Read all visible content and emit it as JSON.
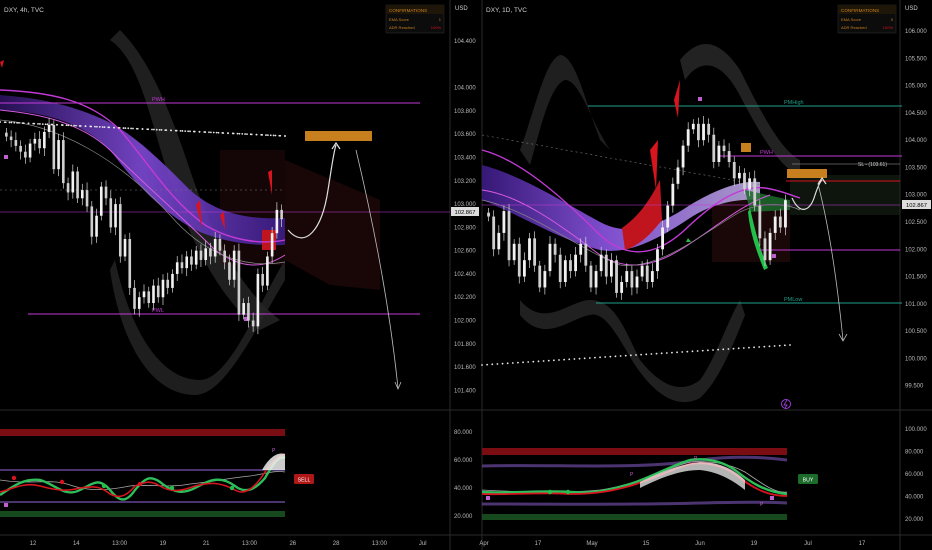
{
  "colors": {
    "bg": "#000000",
    "up": "#e8e8e8",
    "down": "#e8e8e8",
    "magenta": "#c23ad6",
    "teal": "#1f9e8a",
    "orange": "#c8801e",
    "red": "#d8141e",
    "green": "#22c04a",
    "purple_dark": "#3a1a7a",
    "purple_light": "#7f4fd8",
    "grey": "#8a8a8a",
    "sell": "#b01818",
    "buy": "#1d6b2a"
  },
  "left_panel": {
    "title": "DXY, 4h, TVC",
    "currency": "USD",
    "price_badge": "102.867",
    "confirmations": {
      "header": "CONFIRMATIONS",
      "rows": [
        {
          "label": "EMA Score",
          "value": "1"
        },
        {
          "label": "ADR Reached",
          "value": "100%"
        }
      ]
    },
    "level_labels": {
      "upper": "PWH",
      "lower": "PWL"
    },
    "signal_label": "SELL",
    "x_ticks": [
      "12",
      "14",
      "13:00",
      "19",
      "21",
      "13:00",
      "26",
      "28",
      "13:00",
      "Jul"
    ]
  },
  "right_panel": {
    "title": "DXY, 1D, TVC",
    "currency": "USD",
    "price_badge": "102.867",
    "confirmations": {
      "header": "CONFIRMATIONS",
      "rows": [
        {
          "label": "EMA Score",
          "value": "0"
        },
        {
          "label": "ADR Reached",
          "value": "100%"
        }
      ]
    },
    "level_labels": {
      "upper": "PMHigh",
      "mid": "PWH",
      "lower": "PMLow",
      "sl": "SL - (103.61)"
    },
    "signal_label": "BUY",
    "x_ticks": [
      "Apr",
      "17",
      "May",
      "15",
      "Jun",
      "19",
      "Jul",
      "17"
    ]
  },
  "chart_data": [
    {
      "type": "candlestick",
      "title": "DXY, 4h, TVC",
      "ylabel": "USD",
      "ylim": [
        101.3,
        104.65
      ],
      "y_ticks": [
        "104.400",
        "104.000",
        "103.800",
        "103.600",
        "103.400",
        "103.200",
        "103.000",
        "102.800",
        "102.600",
        "102.400",
        "102.200",
        "102.000",
        "101.800",
        "101.600",
        "101.400"
      ],
      "levels": {
        "PWH": 103.75,
        "PWL": 102.0,
        "current": 102.867,
        "target_zone": [
          103.44,
          103.53
        ],
        "projection_low": 101.45
      },
      "oscillator": {
        "y_ticks": [
          "80.000",
          "60.000",
          "40.000",
          "20.000"
        ],
        "ylim": [
          10,
          90
        ],
        "signal": "SELL"
      },
      "x_ticks": [
        "12",
        "14",
        "13:00",
        "19",
        "21",
        "13:00",
        "26",
        "28",
        "13:00",
        "Jul"
      ],
      "close_series": [
        103.58,
        103.55,
        103.5,
        103.45,
        103.4,
        103.52,
        103.56,
        103.48,
        103.62,
        103.68,
        103.3,
        103.55,
        103.18,
        103.1,
        103.28,
        103.05,
        103.12,
        102.98,
        102.72,
        102.9,
        103.15,
        103.05,
        102.8,
        103.0,
        102.55,
        102.7,
        102.28,
        102.1,
        102.2,
        102.25,
        102.15,
        102.3,
        102.2,
        102.35,
        102.28,
        102.4,
        102.5,
        102.45,
        102.55,
        102.48,
        102.6,
        102.52,
        102.62,
        102.55,
        102.7,
        102.6,
        102.5,
        102.35,
        102.6,
        102.05,
        102.15,
        102.0,
        101.95,
        102.4,
        102.3,
        102.55,
        102.75,
        102.95,
        102.87
      ]
    },
    {
      "type": "candlestick",
      "title": "DXY, 1D, TVC",
      "ylabel": "USD",
      "ylim": [
        99.2,
        106.35
      ],
      "y_ticks": [
        "106.000",
        "105.500",
        "105.000",
        "104.500",
        "104.000",
        "103.500",
        "103.000",
        "102.500",
        "102.000",
        "101.500",
        "101.000",
        "100.500",
        "100.000",
        "99.500"
      ],
      "levels": {
        "PMHigh": 104.65,
        "PWH": 103.75,
        "PMLow": 101.05,
        "SL": 103.61,
        "current": 102.867,
        "target_zone": [
          103.35,
          103.58
        ],
        "projection_low": 100.1
      },
      "oscillator": {
        "y_ticks": [
          "100.000",
          "80.000",
          "60.000",
          "40.000",
          "20.000"
        ],
        "ylim": [
          10,
          110
        ],
        "signal": "BUY"
      },
      "x_ticks": [
        "Apr",
        "17",
        "May",
        "15",
        "Jun",
        "19",
        "Jul",
        "17"
      ],
      "close_series": [
        102.6,
        102.0,
        102.3,
        102.7,
        101.8,
        102.1,
        101.5,
        101.8,
        102.2,
        101.7,
        101.3,
        101.6,
        102.1,
        101.9,
        101.4,
        101.8,
        101.6,
        101.9,
        102.1,
        101.7,
        101.3,
        101.6,
        101.9,
        101.5,
        101.8,
        101.2,
        101.4,
        101.6,
        101.3,
        101.5,
        101.7,
        101.4,
        101.6,
        102.0,
        102.4,
        102.8,
        103.2,
        103.5,
        103.9,
        104.2,
        104.3,
        104.0,
        104.3,
        104.1,
        103.6,
        103.9,
        103.8,
        103.6,
        103.3,
        103.4,
        103.1,
        103.3,
        102.8,
        102.2,
        101.8,
        102.3,
        102.6,
        102.4,
        102.9
      ]
    }
  ]
}
